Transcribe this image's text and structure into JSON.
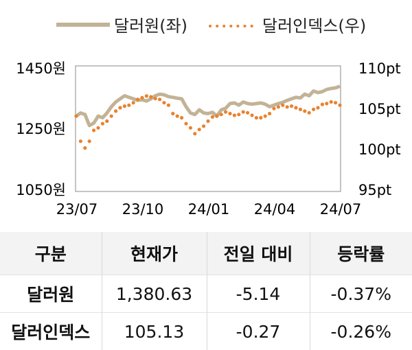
{
  "chart_data": {
    "type": "line",
    "x_ticks": [
      "23/07",
      "23/10",
      "24/01",
      "24/04",
      "24/07"
    ],
    "y_left": {
      "ticks": [
        "1450원",
        "1250원",
        "1050원"
      ],
      "range": [
        1050,
        1450
      ]
    },
    "y_right": {
      "ticks": [
        "110pt",
        "105pt",
        "100pt",
        "95pt"
      ],
      "range": [
        95,
        110
      ]
    },
    "legend_position": "top",
    "series": [
      {
        "name": "달러원(좌)",
        "axis": "left",
        "style": "solid",
        "color": "#c2b396",
        "values": [
          1290,
          1300,
          1295,
          1260,
          1268,
          1290,
          1285,
          1300,
          1320,
          1335,
          1345,
          1355,
          1350,
          1345,
          1340,
          1342,
          1338,
          1345,
          1355,
          1360,
          1358,
          1352,
          1350,
          1347,
          1345,
          1320,
          1300,
          1295,
          1310,
          1300,
          1298,
          1302,
          1290,
          1310,
          1315,
          1330,
          1332,
          1325,
          1335,
          1330,
          1328,
          1330,
          1332,
          1328,
          1320,
          1325,
          1330,
          1334,
          1340,
          1345,
          1350,
          1348,
          1360,
          1355,
          1370,
          1365,
          1368,
          1375,
          1378,
          1380,
          1385
        ]
      },
      {
        "name": "달러인덱스(우)",
        "axis": "right",
        "style": "dotted",
        "color": "#e8822e",
        "values": [
          104.0,
          101.0,
          100.2,
          101.0,
          102.3,
          102.6,
          103.1,
          103.4,
          104.0,
          104.6,
          105.0,
          105.2,
          105.3,
          105.6,
          106.0,
          106.2,
          106.4,
          106.3,
          106.1,
          106.0,
          105.6,
          105.3,
          104.3,
          104.0,
          103.8,
          103.1,
          102.6,
          101.9,
          102.4,
          102.8,
          103.4,
          103.9,
          104.0,
          104.2,
          104.5,
          104.3,
          104.1,
          104.2,
          104.5,
          104.4,
          104.1,
          103.8,
          103.8,
          104.0,
          104.3,
          104.9,
          105.1,
          105.3,
          105.1,
          105.2,
          105.0,
          104.8,
          104.6,
          104.4,
          104.8,
          105.0,
          105.4,
          105.5,
          105.7,
          105.6,
          105.3
        ]
      }
    ]
  },
  "table": {
    "headers": [
      "구분",
      "현재가",
      "전일 대비",
      "등락률"
    ],
    "rows": [
      [
        "달러원",
        "1,380.63",
        "-5.14",
        "-0.37%"
      ],
      [
        "달러인덱스",
        "105.13",
        "-0.27",
        "-0.26%"
      ]
    ]
  }
}
